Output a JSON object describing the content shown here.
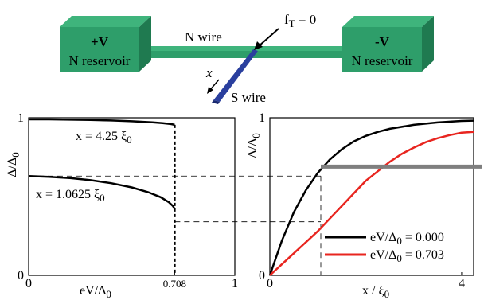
{
  "schematic": {
    "left_reservoir": {
      "voltage": "+V",
      "label": "N reservoir"
    },
    "right_reservoir": {
      "voltage": "-V",
      "label": "N reservoir"
    },
    "n_wire_label": "N wire",
    "s_wire_label": "S wire",
    "x_label": "x",
    "ft_label": "f",
    "ft_sub": "T",
    "ft_rhs": " = 0",
    "colors": {
      "reservoir": "#2e9e6a",
      "reservoir_dark": "#1f7a50",
      "s_wire": "#2a3f9e"
    }
  },
  "chart_data": [
    {
      "type": "line",
      "ylabel": "Δ/Δ",
      "ylabel_sub": "0",
      "xlabel": "eV/Δ",
      "xlabel_sub": "0",
      "xlim": [
        0,
        1
      ],
      "ylim": [
        0,
        1
      ],
      "x_ticks": [
        {
          "value": 0,
          "label": "0"
        },
        {
          "value": 0.708,
          "label": "0.708"
        },
        {
          "value": 1,
          "label": "1"
        }
      ],
      "y_ticks": [
        {
          "value": 0,
          "label": "0"
        },
        {
          "value": 1,
          "label": "1"
        }
      ],
      "cutoff": 0.708,
      "series": [
        {
          "name": "x = 4.25 ξ",
          "name_sub": "0",
          "color": "#000000",
          "points": [
            [
              0,
              0.99
            ],
            [
              0.1,
              0.99
            ],
            [
              0.2,
              0.988
            ],
            [
              0.3,
              0.986
            ],
            [
              0.4,
              0.983
            ],
            [
              0.5,
              0.978
            ],
            [
              0.6,
              0.971
            ],
            [
              0.65,
              0.966
            ],
            [
              0.69,
              0.96
            ],
            [
              0.708,
              0.955
            ]
          ]
        },
        {
          "name": "x = 1.0625 ξ",
          "name_sub": "0",
          "color": "#000000",
          "points": [
            [
              0,
              0.63
            ],
            [
              0.1,
              0.625
            ],
            [
              0.2,
              0.617
            ],
            [
              0.3,
              0.604
            ],
            [
              0.4,
              0.585
            ],
            [
              0.5,
              0.558
            ],
            [
              0.58,
              0.528
            ],
            [
              0.64,
              0.496
            ],
            [
              0.68,
              0.464
            ],
            [
              0.7,
              0.44
            ],
            [
              0.708,
              0.42
            ]
          ]
        }
      ]
    },
    {
      "type": "line",
      "ylabel": "Δ/Δ",
      "ylabel_sub": "0",
      "xlabel": "x / ξ",
      "xlabel_sub": "0",
      "xlim": [
        0,
        4.25
      ],
      "ylim": [
        0,
        1
      ],
      "x_ticks": [
        {
          "value": 0,
          "label": "0"
        },
        {
          "value": 4,
          "label": "4"
        }
      ],
      "y_ticks": [
        {
          "value": 0,
          "label": "0"
        },
        {
          "value": 1,
          "label": "1"
        }
      ],
      "legend_position": "bottom-right",
      "series": [
        {
          "name": "eV/Δ",
          "name_sub": "0",
          "name_rhs": " = 0.000",
          "color": "#000000",
          "points": [
            [
              0,
              0
            ],
            [
              0.25,
              0.22
            ],
            [
              0.5,
              0.4
            ],
            [
              0.75,
              0.54
            ],
            [
              1.0,
              0.65
            ],
            [
              1.25,
              0.735
            ],
            [
              1.5,
              0.8
            ],
            [
              1.75,
              0.85
            ],
            [
              2.0,
              0.885
            ],
            [
              2.25,
              0.91
            ],
            [
              2.5,
              0.93
            ],
            [
              3.0,
              0.955
            ],
            [
              3.5,
              0.97
            ],
            [
              4.0,
              0.98
            ],
            [
              4.25,
              0.982
            ]
          ]
        },
        {
          "name": "eV/Δ",
          "name_sub": "0",
          "name_rhs": " = 0.703",
          "color": "#e8251f",
          "points": [
            [
              0,
              0
            ],
            [
              0.25,
              0.07
            ],
            [
              0.5,
              0.14
            ],
            [
              0.75,
              0.21
            ],
            [
              1.0,
              0.28
            ],
            [
              1.25,
              0.36
            ],
            [
              1.5,
              0.44
            ],
            [
              1.75,
              0.52
            ],
            [
              2.0,
              0.6
            ],
            [
              2.25,
              0.66
            ],
            [
              2.5,
              0.72
            ],
            [
              2.75,
              0.77
            ],
            [
              3.0,
              0.81
            ],
            [
              3.25,
              0.845
            ],
            [
              3.5,
              0.87
            ],
            [
              3.75,
              0.89
            ],
            [
              4.0,
              0.905
            ],
            [
              4.25,
              0.91
            ]
          ]
        }
      ],
      "guide_level_high": 0.63,
      "guide_level_low": 0.34,
      "guide_x": 1.0625,
      "gray_bar": {
        "color": "#7f7f7f",
        "level": 0.69
      }
    }
  ]
}
